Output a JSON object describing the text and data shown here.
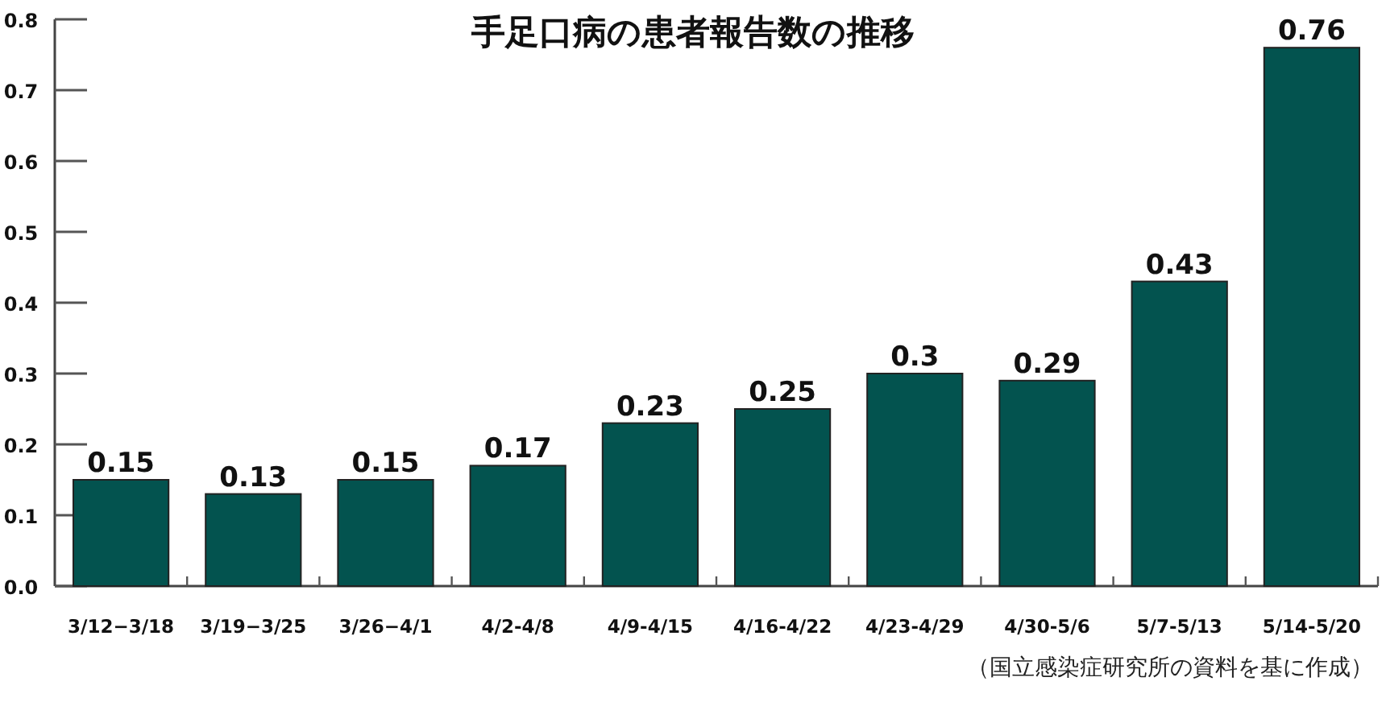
{
  "chart_data": {
    "type": "bar",
    "title": "手足口病の患者報告数の推移",
    "categories": [
      "3/12−3/18",
      "3/19−3/25",
      "3/26−4/1",
      "4/2-4/8",
      "4/9-4/15",
      "4/16-4/22",
      "4/23-4/29",
      "4/30-5/6",
      "5/7-5/13",
      "5/14-5/20"
    ],
    "values": [
      0.15,
      0.13,
      0.15,
      0.17,
      0.23,
      0.25,
      0.3,
      0.29,
      0.43,
      0.76
    ],
    "color": "#03534f",
    "ylim": [
      0,
      0.8
    ],
    "yticks": [
      {
        "value": 0,
        "label": "0.0"
      },
      0.1,
      0.2,
      0.3,
      0.4,
      0.5,
      0.6,
      0.7,
      0.8
    ],
    "data_labels": true,
    "grid": false,
    "annotations": [
      "（国立感染症研究所の資料を基に作成）"
    ]
  }
}
